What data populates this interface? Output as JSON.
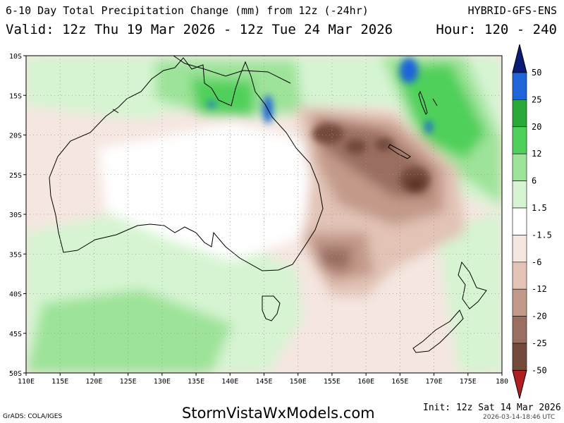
{
  "header": {
    "title_line1": "6-10 Day Total Precipitation Change (mm) from 12z (-24hr)",
    "product": "HYBRID-GFS-ENS",
    "title_line2": "Valid: 12z Thu 19 Mar 2026 - 12z Tue 24 Mar 2026",
    "hours": "Hour: 120 - 240"
  },
  "map": {
    "region": "Australia / New Zealand",
    "lon_labels": [
      "110E",
      "115E",
      "120E",
      "125E",
      "130E",
      "135E",
      "140E",
      "145E",
      "150E",
      "155E",
      "160E",
      "165E",
      "170E",
      "175E",
      "180"
    ],
    "lat_labels": [
      "10S",
      "15S",
      "20S",
      "25S",
      "30S",
      "35S",
      "40S",
      "45S",
      "50S"
    ]
  },
  "legend": {
    "labels": [
      "50",
      "25",
      "20",
      "12",
      "6",
      "1.5",
      "-1.5",
      "-6",
      "-12",
      "-20",
      "-25",
      "-50"
    ],
    "colors": {
      "gt50": "#0a1a78",
      "25_50": "#1f64d9",
      "20_25": "#2aa838",
      "12_20": "#4fd05a",
      "6_12": "#9ee39a",
      "1_5_6": "#d6f4d2",
      "neutral": "#ffffff",
      "m6_m1_5": "#f5e6e0",
      "m12_m6": "#e2c3b6",
      "m20_m12": "#c39a8a",
      "m25_m20": "#9a6e60",
      "m50_m25": "#734a3c",
      "lt_m50": "#5e3428",
      "extreme_low": "#b02020"
    }
  },
  "footer": {
    "grads": "GrADS: COLA/IGES",
    "website": "StormVistaWxModels.com",
    "init": "Init: 12z Sat 14 Mar 2026",
    "timestamp": "2026-03-14-18:46 UTC"
  }
}
